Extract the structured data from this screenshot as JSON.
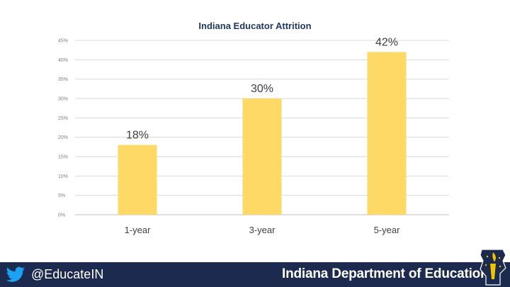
{
  "chart_data": {
    "type": "bar",
    "title": "Indiana Educator Attrition",
    "categories": [
      "1-year",
      "3-year",
      "5-year"
    ],
    "values": [
      18,
      30,
      42
    ],
    "data_labels": [
      "18%",
      "30%",
      "42%"
    ],
    "ylim": [
      0,
      45
    ],
    "yticks": [
      "0%",
      "5%",
      "10%",
      "15%",
      "20%",
      "25%",
      "30%",
      "35%",
      "40%",
      "45%"
    ],
    "xlabel": "",
    "ylabel": "",
    "grid": true,
    "bar_color": "#ffd966"
  },
  "footer": {
    "handle": "@EducateIN",
    "organization": "Indiana Department of Education",
    "background_color": "#1b2a4e",
    "icons": [
      "twitter-bird-icon",
      "torch-logo-icon"
    ]
  }
}
